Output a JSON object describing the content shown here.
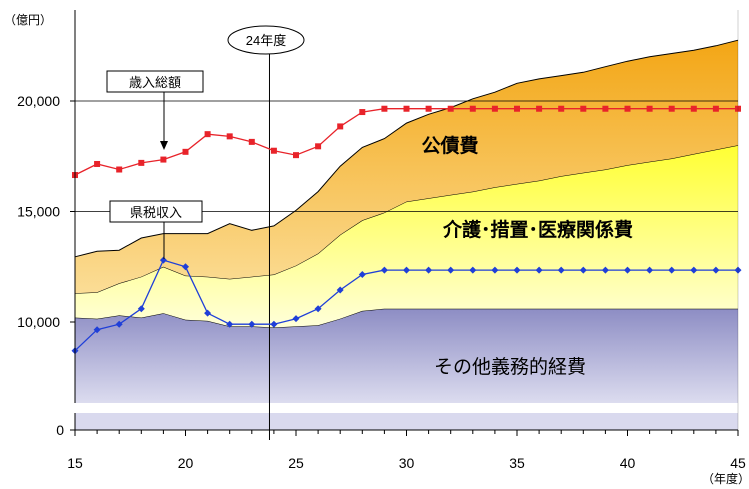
{
  "chart_data": {
    "type": "area",
    "y_unit_label": "（億円）",
    "x_unit_label": "（年度）",
    "x_ticks": [
      15,
      20,
      25,
      30,
      35,
      40,
      45
    ],
    "y_ticks": [
      {
        "value": 0,
        "label": "0"
      },
      {
        "value": 10000,
        "label": "10,000"
      },
      {
        "value": 15000,
        "label": "15,000"
      },
      {
        "value": 20000,
        "label": "20,000"
      }
    ],
    "y_broken_axis": true,
    "xlim": [
      15,
      45
    ],
    "reference_year_label": "24年度",
    "reference_year": 23.8,
    "stacked_bands": [
      {
        "name": "その他義務的経費",
        "color": "#9b9bcd",
        "x": [
          15,
          16,
          17,
          18,
          19,
          20,
          21,
          22,
          23,
          24,
          25,
          26,
          27,
          28,
          29,
          30,
          31,
          32,
          33,
          34,
          35,
          36,
          37,
          38,
          39,
          40,
          41,
          42,
          43,
          44,
          45
        ],
        "upper": [
          10200,
          10150,
          10300,
          10200,
          10400,
          10100,
          10050,
          9800,
          9800,
          9750,
          9800,
          9850,
          10150,
          10500,
          10600,
          10600,
          10600,
          10600,
          10600,
          10600,
          10600,
          10600,
          10600,
          10600,
          10600,
          10600,
          10600,
          10600,
          10600,
          10600,
          10600
        ]
      },
      {
        "name": "介護・措置・医療関係費",
        "color": "#ffff66",
        "x": [
          15,
          16,
          17,
          18,
          19,
          20,
          21,
          22,
          23,
          24,
          25,
          26,
          27,
          28,
          29,
          30,
          31,
          32,
          33,
          34,
          35,
          36,
          37,
          38,
          39,
          40,
          41,
          42,
          43,
          44,
          45
        ],
        "upper": [
          11300,
          11350,
          11750,
          12050,
          12500,
          12100,
          12050,
          11950,
          12050,
          12150,
          12550,
          13100,
          13950,
          14600,
          14950,
          15450,
          15600,
          15750,
          15900,
          16100,
          16250,
          16400,
          16600,
          16750,
          16900,
          17100,
          17250,
          17400,
          17600,
          17800,
          18000
        ]
      },
      {
        "name": "公債費",
        "color": "#f6b830",
        "x": [
          15,
          16,
          17,
          18,
          19,
          20,
          21,
          22,
          23,
          24,
          25,
          26,
          27,
          28,
          29,
          30,
          31,
          32,
          33,
          34,
          35,
          36,
          37,
          38,
          39,
          40,
          41,
          42,
          43,
          44,
          45
        ],
        "upper": [
          12950,
          13200,
          13250,
          13800,
          14000,
          14000,
          14000,
          14450,
          14150,
          14350,
          15050,
          15900,
          17050,
          17900,
          18300,
          19000,
          19400,
          19700,
          20100,
          20400,
          20800,
          21000,
          21150,
          21300,
          21550,
          21800,
          22000,
          22150,
          22300,
          22500,
          22750
        ]
      }
    ],
    "line_series": [
      {
        "name": "歳入総額",
        "color": "#e8232a",
        "marker": "square",
        "x": [
          15,
          16,
          17,
          18,
          19,
          20,
          21,
          22,
          23,
          24,
          25,
          26,
          27,
          28,
          29,
          30,
          31,
          32,
          33,
          34,
          35,
          36,
          37,
          38,
          39,
          40,
          41,
          42,
          43,
          44,
          45
        ],
        "values": [
          16650,
          17150,
          16900,
          17200,
          17350,
          17700,
          18500,
          18400,
          18150,
          17750,
          17550,
          17950,
          18850,
          19500,
          19650,
          19650,
          19650,
          19650,
          19650,
          19650,
          19650,
          19650,
          19650,
          19650,
          19650,
          19650,
          19650,
          19650,
          19650,
          19650,
          19650
        ]
      },
      {
        "name": "県税収入",
        "color": "#1f3fd8",
        "marker": "diamond",
        "x": [
          15,
          16,
          17,
          18,
          19,
          20,
          21,
          22,
          23,
          24,
          25,
          26,
          27,
          28,
          29,
          30,
          31,
          32,
          33,
          34,
          35,
          36,
          37,
          38,
          39,
          40,
          41,
          42,
          43,
          44,
          45
        ],
        "values": [
          8700,
          9650,
          9900,
          10600,
          12800,
          12500,
          10400,
          9900,
          9900,
          9900,
          10150,
          10600,
          11450,
          12150,
          12350,
          12350,
          12350,
          12350,
          12350,
          12350,
          12350,
          12350,
          12350,
          12350,
          12350,
          12350,
          12350,
          12350,
          12350,
          12350,
          12350
        ]
      }
    ],
    "band_labels": {
      "other": "その他義務的経費",
      "care": "介護･措置･医療関係費",
      "debt": "公債費"
    },
    "callouts": {
      "revenue": "歳入総額",
      "tax": "県税収入"
    }
  }
}
